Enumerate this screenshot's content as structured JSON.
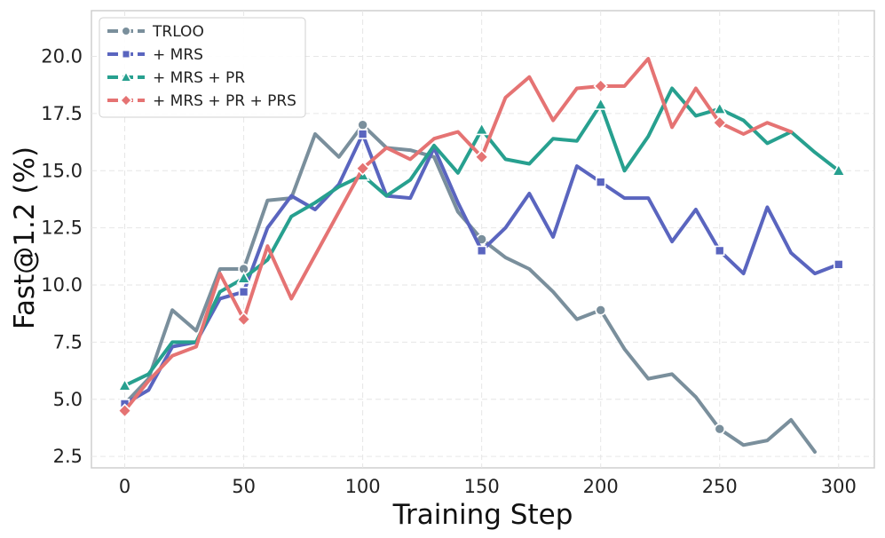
{
  "chart_data": {
    "type": "line",
    "title": "",
    "xlabel": "Training Step",
    "ylabel": "Fast@1.2 (%)",
    "xlim": [
      -14,
      315
    ],
    "ylim": [
      2.0,
      22.0
    ],
    "xticks": [
      0,
      50,
      100,
      150,
      200,
      250,
      300
    ],
    "yticks": [
      2.5,
      5.0,
      7.5,
      10.0,
      12.5,
      15.0,
      17.5,
      20.0
    ],
    "ytick_labels": [
      "2.5",
      "5.0",
      "7.5",
      "10.0",
      "12.5",
      "15.0",
      "17.5",
      "20.0"
    ],
    "grid": true,
    "legend_position": "top-left",
    "series": [
      {
        "name": "TRLOO",
        "color": "#7a8f9c",
        "marker": "circle",
        "x": [
          0,
          10,
          20,
          30,
          40,
          50,
          60,
          70,
          80,
          90,
          100,
          110,
          120,
          130,
          140,
          150,
          160,
          170,
          180,
          190,
          200,
          210,
          220,
          230,
          240,
          250,
          260,
          270,
          280,
          290
        ],
        "y": [
          4.8,
          5.9,
          8.9,
          8.0,
          10.7,
          10.7,
          13.7,
          13.8,
          16.6,
          15.6,
          17.0,
          16.0,
          15.9,
          15.6,
          13.2,
          12.0,
          11.2,
          10.7,
          9.7,
          8.5,
          8.9,
          7.2,
          5.9,
          6.1,
          5.1,
          3.7,
          3.0,
          3.2,
          4.1,
          2.7
        ],
        "marker_x": [
          0,
          50,
          100,
          150,
          200,
          250
        ]
      },
      {
        "name": "+ MRS",
        "color": "#5a65bf",
        "marker": "square",
        "x": [
          0,
          10,
          20,
          30,
          40,
          50,
          60,
          70,
          80,
          90,
          100,
          110,
          120,
          130,
          140,
          150,
          160,
          170,
          180,
          190,
          200,
          210,
          220,
          230,
          240,
          250,
          260,
          270,
          280,
          290,
          300
        ],
        "y": [
          4.8,
          5.4,
          7.3,
          7.5,
          9.4,
          9.7,
          12.5,
          13.9,
          13.3,
          14.4,
          16.6,
          13.9,
          13.8,
          16.0,
          13.6,
          11.5,
          12.5,
          14.0,
          12.1,
          15.2,
          14.5,
          13.8,
          13.8,
          11.9,
          13.3,
          11.5,
          10.5,
          13.4,
          11.4,
          10.5,
          10.9
        ],
        "marker_x": [
          0,
          50,
          100,
          150,
          200,
          250,
          300
        ]
      },
      {
        "name": "+ MRS + PR",
        "color": "#27a08f",
        "marker": "triangle",
        "x": [
          0,
          10,
          20,
          30,
          40,
          50,
          60,
          70,
          80,
          90,
          100,
          110,
          120,
          130,
          140,
          150,
          160,
          170,
          180,
          190,
          200,
          210,
          220,
          230,
          240,
          250,
          260,
          270,
          280,
          290,
          300
        ],
        "y": [
          5.6,
          6.1,
          7.5,
          7.5,
          9.7,
          10.3,
          11.1,
          13.0,
          13.6,
          14.3,
          14.8,
          13.9,
          14.6,
          16.1,
          14.9,
          16.8,
          15.5,
          15.3,
          16.4,
          16.3,
          17.9,
          15.0,
          16.5,
          18.6,
          17.4,
          17.7,
          17.2,
          16.2,
          16.7,
          15.8,
          15.0
        ],
        "marker_x": [
          0,
          50,
          100,
          150,
          200,
          250,
          300
        ]
      },
      {
        "name": "+ MRS + PR + PRS",
        "color": "#e57373",
        "marker": "diamond",
        "x": [
          0,
          10,
          20,
          30,
          40,
          50,
          60,
          70,
          80,
          90,
          100,
          110,
          120,
          130,
          140,
          150,
          160,
          170,
          180,
          190,
          200,
          210,
          220,
          230,
          240,
          250,
          260,
          270,
          280
        ],
        "y": [
          4.5,
          5.8,
          6.9,
          7.3,
          10.5,
          8.5,
          11.7,
          9.4,
          11.3,
          13.2,
          15.1,
          16.0,
          15.5,
          16.4,
          16.7,
          15.6,
          18.2,
          19.1,
          17.2,
          18.6,
          18.7,
          18.7,
          19.9,
          16.9,
          18.6,
          17.1,
          16.6,
          17.1,
          16.7
        ],
        "marker_x": [
          0,
          50,
          100,
          150,
          200,
          250
        ]
      }
    ]
  }
}
